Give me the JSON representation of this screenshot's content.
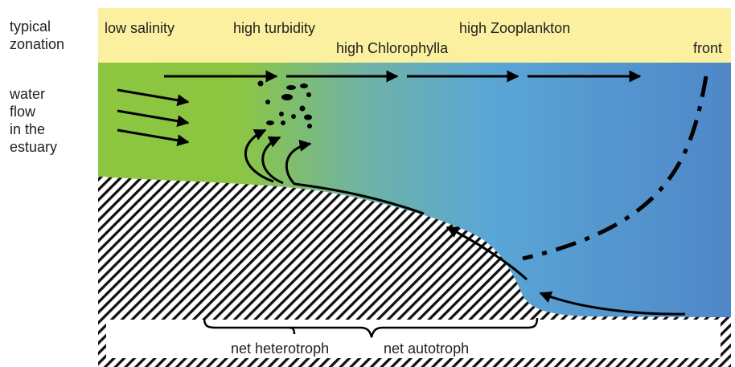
{
  "side_labels": {
    "zonation": [
      "typical",
      "zonation"
    ],
    "flow": [
      "water",
      "flow",
      "in the",
      "estuary"
    ]
  },
  "zones": {
    "low_salinity": "low salinity",
    "high_turbidity": "high turbidity",
    "high_chlorophylla": "high Chlorophylla",
    "high_zooplankton": "high Zooplankton",
    "front": "front"
  },
  "bottom": {
    "net_heterotroph": "net heterotroph",
    "net_autotroph": "net autotroph"
  },
  "colors": {
    "zonation_band": "#fbf0a0",
    "water_fresh": "#8dc63f",
    "water_mid": "#6fb3a6",
    "water_saline": "#4f8fcb",
    "arrow": "#000000"
  }
}
